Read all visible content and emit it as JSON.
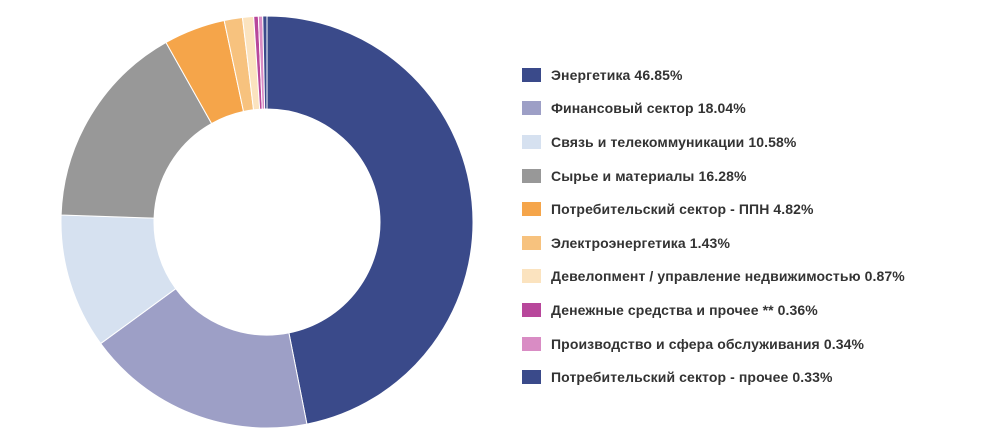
{
  "chart_data": {
    "type": "pie",
    "variant": "donut",
    "legend_position": "right",
    "slices": [
      {
        "label": "Энергетика",
        "value": 46.85,
        "legend_text": "Энергетика 46.85%",
        "color": "#3a4a8a"
      },
      {
        "label": "Финансовый сектор",
        "value": 18.04,
        "legend_text": "Финансовый сектор 18.04%",
        "color": "#9d9fc6"
      },
      {
        "label": "Связь и телекоммуникации",
        "value": 10.58,
        "legend_text": "Связь и телекоммуникации 10.58%",
        "color": "#d6e1f0"
      },
      {
        "label": "Сырье и материалы",
        "value": 16.28,
        "legend_text": "Сырье и материалы 16.28%",
        "color": "#989898"
      },
      {
        "label": "Потребительский сектор - ППН",
        "value": 4.82,
        "legend_text": "Потребительский сектор - ППН 4.82%",
        "color": "#f5a54a"
      },
      {
        "label": "Электроэнергетика",
        "value": 1.43,
        "legend_text": "Электроэнергетика 1.43%",
        "color": "#f7c27e"
      },
      {
        "label": "Девелопмент / управление недвижимостью",
        "value": 0.87,
        "legend_text": "Девелопмент / управление недвижимостью 0.87%",
        "color": "#fbe3bf"
      },
      {
        "label": "Денежные средства и прочее **",
        "value": 0.36,
        "legend_text": "Денежные средства и прочее ** 0.36%",
        "color": "#b8479b"
      },
      {
        "label": "Производство и сфера обслуживания",
        "value": 0.34,
        "legend_text": "Производство и сфера обслуживания 0.34%",
        "color": "#d98cc4"
      },
      {
        "label": "Потребительский сектор - прочее",
        "value": 0.33,
        "legend_text": "Потребительский сектор - прочее 0.33%",
        "color": "#3a4a8a"
      }
    ]
  }
}
